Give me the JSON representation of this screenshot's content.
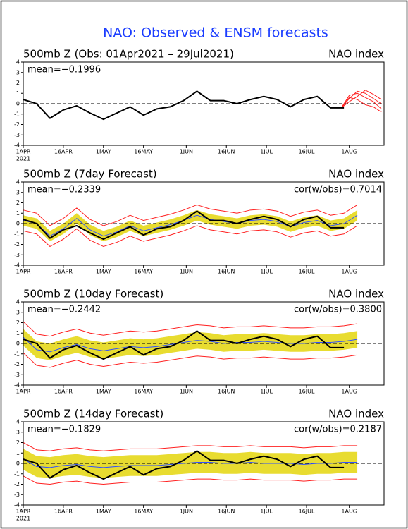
{
  "title": "NAO: Observed & ENSM forecasts",
  "chart_data": [
    {
      "type": "line",
      "title": "500mb Z (Obs: 01Apr2021 – 29Jul2021)",
      "right_title": "NAO index",
      "mean_label": "mean=−0.1996",
      "x": [
        0,
        5,
        10,
        15,
        20,
        25,
        30,
        35,
        40,
        45,
        50,
        55,
        60,
        65,
        70,
        75,
        80,
        85,
        90,
        95,
        100,
        105,
        110,
        115,
        120,
        125
      ],
      "xlim": [
        0,
        135
      ],
      "xticks": [
        {
          "value": 0,
          "label": "1APR"
        },
        {
          "value": 15,
          "label": "16APR"
        },
        {
          "value": 30,
          "label": "1MAY"
        },
        {
          "value": 45,
          "label": "16MAY"
        },
        {
          "value": 61,
          "label": "1JUN"
        },
        {
          "value": 76,
          "label": "16JUN"
        },
        {
          "value": 91,
          "label": "1JUL"
        },
        {
          "value": 106,
          "label": "16JUL"
        },
        {
          "value": 122,
          "label": "1AUG"
        }
      ],
      "year_label": "2021",
      "ylim": [
        -4,
        4
      ],
      "yticks": [
        -4,
        -3,
        -2,
        -1,
        0,
        1,
        2,
        3,
        4
      ],
      "series": [
        {
          "color": "#ff2020",
          "width": 1,
          "x": [
            119,
            122,
            125,
            128,
            131,
            134
          ],
          "values": [
            -0.4,
            0.8,
            1.0,
            0.6,
            0.2,
            -0.5
          ]
        },
        {
          "color": "#ff2020",
          "width": 1,
          "x": [
            119,
            122,
            125,
            128,
            131,
            134
          ],
          "values": [
            -0.4,
            0.5,
            1.2,
            1.0,
            0.5,
            0.0
          ]
        },
        {
          "color": "#ff2020",
          "width": 1,
          "x": [
            119,
            122,
            125,
            128,
            131,
            134
          ],
          "values": [
            -0.4,
            0.2,
            0.7,
            1.3,
            0.9,
            0.4
          ]
        },
        {
          "color": "#ff2020",
          "width": 1,
          "x": [
            119,
            122,
            125,
            128,
            131,
            134
          ],
          "values": [
            -0.4,
            0.6,
            0.4,
            -0.1,
            -0.3,
            -0.8
          ]
        },
        {
          "color": "#000000",
          "width": 2,
          "values": [
            0.4,
            0.0,
            -1.4,
            -0.6,
            -0.2,
            -0.9,
            -1.5,
            -0.9,
            -0.3,
            -1.1,
            -0.5,
            -0.3,
            0.3,
            1.2,
            0.3,
            0.3,
            0.0,
            0.4,
            0.7,
            0.4,
            -0.3,
            0.4,
            0.7,
            -0.4,
            -0.4,
            null
          ]
        }
      ]
    },
    {
      "type": "line",
      "title": "500mb Z (7day Forecast)",
      "right_title": "NAO index",
      "mean_label": "mean=−0.2339",
      "cor_label": "cor(w/obs)=0.7014",
      "x": [
        0,
        5,
        10,
        15,
        20,
        25,
        30,
        35,
        40,
        45,
        50,
        55,
        60,
        65,
        70,
        75,
        80,
        85,
        90,
        95,
        100,
        105,
        110,
        115,
        120,
        125
      ],
      "xlim": [
        0,
        135
      ],
      "xticks": [
        {
          "value": 0,
          "label": "1APR"
        },
        {
          "value": 15,
          "label": "16APR"
        },
        {
          "value": 30,
          "label": "1MAY"
        },
        {
          "value": 45,
          "label": "16MAY"
        },
        {
          "value": 61,
          "label": "1JUN"
        },
        {
          "value": 76,
          "label": "16JUN"
        },
        {
          "value": 91,
          "label": "1JUL"
        },
        {
          "value": 106,
          "label": "16JUL"
        },
        {
          "value": 122,
          "label": "1AUG"
        }
      ],
      "ylim": [
        -4,
        4
      ],
      "yticks": [
        -4,
        -3,
        -2,
        -1,
        0,
        1,
        2,
        3,
        4
      ],
      "band": {
        "color": "#e8dc30",
        "lower": [
          -0.2,
          -0.5,
          -1.7,
          -1.0,
          0.0,
          -1.1,
          -1.7,
          -1.3,
          -0.7,
          -1.2,
          -0.9,
          -0.6,
          -0.2,
          0.3,
          -0.1,
          -0.3,
          -0.5,
          -0.2,
          -0.1,
          -0.3,
          -0.8,
          -0.4,
          -0.2,
          -0.7,
          -0.5,
          0.3
        ],
        "upper": [
          0.8,
          0.5,
          -0.7,
          0.0,
          1.0,
          -0.1,
          -0.7,
          -0.3,
          0.3,
          -0.2,
          0.1,
          0.4,
          0.8,
          1.3,
          0.9,
          0.7,
          0.5,
          0.8,
          0.9,
          0.7,
          0.2,
          0.6,
          0.8,
          0.3,
          0.5,
          1.3
        ]
      },
      "series": [
        {
          "color": "#ff2020",
          "width": 1,
          "values": [
            -0.7,
            -1.0,
            -2.2,
            -1.5,
            -0.5,
            -1.6,
            -2.2,
            -1.8,
            -1.2,
            -1.7,
            -1.4,
            -1.1,
            -0.7,
            -0.2,
            -0.6,
            -0.8,
            -1.0,
            -0.7,
            -0.6,
            -0.8,
            -1.3,
            -0.9,
            -0.7,
            -1.2,
            -1.0,
            -0.2
          ]
        },
        {
          "color": "#ff2020",
          "width": 1,
          "values": [
            1.3,
            1.0,
            -0.2,
            0.5,
            1.5,
            0.4,
            -0.2,
            0.2,
            0.8,
            0.3,
            0.6,
            0.9,
            1.3,
            1.8,
            1.4,
            1.2,
            1.0,
            1.3,
            1.4,
            1.2,
            0.7,
            1.1,
            1.3,
            0.8,
            1.0,
            1.8
          ]
        },
        {
          "color": "#3050ff",
          "width": 1,
          "values": [
            0.3,
            0.0,
            -1.2,
            -0.5,
            0.5,
            -0.6,
            -1.2,
            -0.8,
            -0.2,
            -0.7,
            -0.4,
            -0.1,
            0.3,
            0.8,
            0.4,
            0.2,
            0.0,
            0.3,
            0.4,
            0.2,
            -0.3,
            0.1,
            0.3,
            -0.2,
            0.0,
            0.8
          ]
        },
        {
          "color": "#000000",
          "width": 2,
          "values": [
            0.4,
            0.0,
            -1.4,
            -0.6,
            -0.2,
            -0.9,
            -1.5,
            -0.9,
            -0.3,
            -1.1,
            -0.5,
            -0.3,
            0.3,
            1.2,
            0.3,
            0.3,
            0.0,
            0.4,
            0.7,
            0.4,
            -0.3,
            0.4,
            0.7,
            -0.4,
            -0.4,
            null
          ]
        }
      ]
    },
    {
      "type": "line",
      "title": "500mb Z (10day Forecast)",
      "right_title": "NAO index",
      "mean_label": "mean=−0.2442",
      "cor_label": "cor(w/obs)=0.3800",
      "x": [
        0,
        5,
        10,
        15,
        20,
        25,
        30,
        35,
        40,
        45,
        50,
        55,
        60,
        65,
        70,
        75,
        80,
        85,
        90,
        95,
        100,
        105,
        110,
        115,
        120,
        125
      ],
      "xlim": [
        0,
        135
      ],
      "xticks": [
        {
          "value": 0,
          "label": "1APR"
        },
        {
          "value": 15,
          "label": "16APR"
        },
        {
          "value": 30,
          "label": "1MAY"
        },
        {
          "value": 45,
          "label": "16MAY"
        },
        {
          "value": 61,
          "label": "1JUN"
        },
        {
          "value": 76,
          "label": "16JUN"
        },
        {
          "value": 91,
          "label": "1JUL"
        },
        {
          "value": 106,
          "label": "16JUL"
        },
        {
          "value": 122,
          "label": "1AUG"
        }
      ],
      "ylim": [
        -4,
        4
      ],
      "yticks": [
        -4,
        -3,
        -2,
        -1,
        0,
        1,
        2,
        3,
        4
      ],
      "band": {
        "color": "#e8dc30",
        "lower": [
          -0.2,
          -1.4,
          -1.6,
          -1.2,
          -0.9,
          -1.3,
          -1.5,
          -1.3,
          -1.1,
          -1.2,
          -1.1,
          -0.9,
          -0.7,
          -0.5,
          -0.6,
          -0.8,
          -0.7,
          -0.7,
          -0.6,
          -0.7,
          -0.8,
          -0.8,
          -0.7,
          -0.7,
          -0.6,
          -0.4
        ],
        "upper": [
          1.4,
          0.2,
          0.0,
          0.4,
          0.7,
          0.3,
          0.1,
          0.3,
          0.5,
          0.4,
          0.5,
          0.7,
          0.9,
          1.1,
          1.0,
          0.8,
          0.9,
          0.9,
          1.0,
          0.9,
          0.8,
          0.8,
          0.9,
          0.9,
          1.0,
          1.2
        ]
      },
      "series": [
        {
          "color": "#ff2020",
          "width": 1,
          "values": [
            -0.9,
            -2.1,
            -2.3,
            -1.9,
            -1.6,
            -2.0,
            -2.2,
            -2.0,
            -1.8,
            -1.9,
            -1.8,
            -1.6,
            -1.4,
            -1.2,
            -1.3,
            -1.5,
            -1.4,
            -1.4,
            -1.3,
            -1.4,
            -1.5,
            -1.5,
            -1.4,
            -1.4,
            -1.3,
            -1.1
          ]
        },
        {
          "color": "#ff2020",
          "width": 1,
          "values": [
            2.1,
            0.9,
            0.7,
            1.1,
            1.4,
            1.0,
            0.8,
            1.0,
            1.2,
            1.1,
            1.2,
            1.4,
            1.6,
            1.8,
            1.7,
            1.5,
            1.6,
            1.6,
            1.7,
            1.6,
            1.5,
            1.5,
            1.6,
            1.6,
            1.7,
            1.9
          ]
        },
        {
          "color": "#3050ff",
          "width": 1,
          "values": [
            0.6,
            -0.6,
            -0.8,
            -0.4,
            -0.1,
            -0.5,
            -0.7,
            -0.5,
            -0.3,
            -0.4,
            -0.3,
            -0.1,
            0.1,
            0.3,
            0.2,
            0.0,
            0.1,
            0.1,
            0.2,
            0.1,
            0.0,
            0.0,
            0.1,
            0.1,
            0.2,
            0.4
          ]
        },
        {
          "color": "#000000",
          "width": 2,
          "values": [
            0.4,
            0.0,
            -1.4,
            -0.6,
            -0.2,
            -0.9,
            -1.5,
            -0.9,
            -0.3,
            -1.1,
            -0.5,
            -0.3,
            0.3,
            1.2,
            0.3,
            0.3,
            0.0,
            0.4,
            0.7,
            0.4,
            -0.3,
            0.4,
            0.7,
            -0.4,
            -0.4,
            null
          ]
        }
      ]
    },
    {
      "type": "line",
      "title": "500mb Z (14day Forecast)",
      "right_title": "NAO index",
      "mean_label": "mean=−0.1829",
      "cor_label": "cor(w/obs)=0.2187",
      "x": [
        0,
        5,
        10,
        15,
        20,
        25,
        30,
        35,
        40,
        45,
        50,
        55,
        60,
        65,
        70,
        75,
        80,
        85,
        90,
        95,
        100,
        105,
        110,
        115,
        120,
        125
      ],
      "xlim": [
        0,
        135
      ],
      "xticks": [
        {
          "value": 0,
          "label": "1APR"
        },
        {
          "value": 15,
          "label": "16APR"
        },
        {
          "value": 30,
          "label": "1MAY"
        },
        {
          "value": 45,
          "label": "16MAY"
        },
        {
          "value": 61,
          "label": "1JUN"
        },
        {
          "value": 76,
          "label": "16JUN"
        },
        {
          "value": 91,
          "label": "1JUL"
        },
        {
          "value": 106,
          "label": "16JUL"
        },
        {
          "value": 122,
          "label": "1AUG"
        }
      ],
      "year_label": "2021",
      "ylim": [
        -4,
        4
      ],
      "yticks": [
        -4,
        -3,
        -2,
        -1,
        0,
        1,
        2,
        3,
        4
      ],
      "band": {
        "color": "#e8dc30",
        "lower": [
          -0.6,
          -1.3,
          -1.4,
          -1.2,
          -1.1,
          -1.3,
          -1.4,
          -1.3,
          -1.2,
          -1.2,
          -1.2,
          -1.1,
          -1.0,
          -0.9,
          -0.9,
          -1.0,
          -1.0,
          -0.9,
          -1.0,
          -1.0,
          -1.0,
          -1.1,
          -1.0,
          -1.0,
          -0.9,
          -0.9
        ],
        "upper": [
          1.4,
          0.7,
          0.6,
          0.8,
          0.9,
          0.7,
          0.6,
          0.7,
          0.8,
          0.8,
          0.8,
          0.9,
          1.0,
          1.1,
          1.1,
          1.0,
          1.0,
          1.1,
          1.0,
          1.0,
          1.0,
          0.9,
          1.0,
          1.0,
          1.1,
          1.1
        ]
      },
      "series": [
        {
          "color": "#ff2020",
          "width": 1,
          "values": [
            -1.2,
            -1.9,
            -2.0,
            -1.8,
            -1.7,
            -1.9,
            -2.0,
            -1.9,
            -1.8,
            -1.8,
            -1.8,
            -1.7,
            -1.6,
            -1.5,
            -1.5,
            -1.6,
            -1.6,
            -1.5,
            -1.6,
            -1.6,
            -1.6,
            -1.7,
            -1.6,
            -1.6,
            -1.5,
            -1.5
          ]
        },
        {
          "color": "#ff2020",
          "width": 1,
          "values": [
            2.0,
            1.3,
            1.2,
            1.4,
            1.5,
            1.3,
            1.2,
            1.3,
            1.4,
            1.4,
            1.4,
            1.5,
            1.6,
            1.7,
            1.7,
            1.6,
            1.6,
            1.7,
            1.6,
            1.6,
            1.6,
            1.5,
            1.6,
            1.6,
            1.7,
            1.7
          ]
        },
        {
          "color": "#3050ff",
          "width": 1,
          "values": [
            0.4,
            -0.3,
            -0.4,
            -0.2,
            -0.1,
            -0.3,
            -0.4,
            -0.3,
            -0.2,
            -0.2,
            -0.2,
            -0.1,
            0.0,
            0.1,
            0.1,
            0.0,
            0.0,
            0.1,
            0.0,
            0.0,
            0.0,
            -0.1,
            0.0,
            0.0,
            0.1,
            0.1
          ]
        },
        {
          "color": "#000000",
          "width": 2,
          "values": [
            0.4,
            0.0,
            -1.4,
            -0.6,
            -0.2,
            -0.9,
            -1.5,
            -0.9,
            -0.3,
            -1.1,
            -0.5,
            -0.3,
            0.3,
            1.2,
            0.3,
            0.3,
            0.0,
            0.4,
            0.7,
            0.4,
            -0.3,
            0.4,
            0.7,
            -0.4,
            -0.4,
            null
          ]
        }
      ]
    }
  ]
}
